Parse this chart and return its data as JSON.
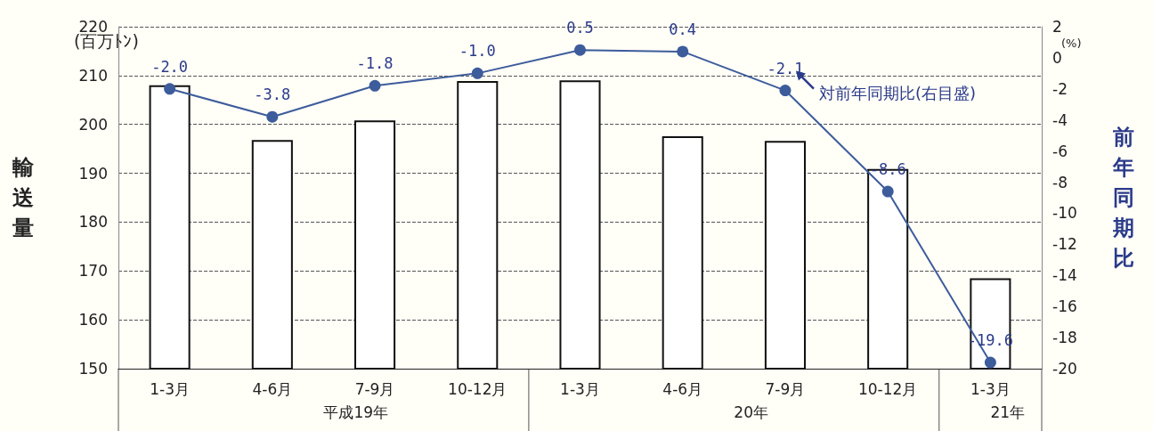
{
  "chart_data": {
    "type": "bar",
    "ylabel": "輸送量",
    "y2label": "前年同期比",
    "annotations": [
      "(百万ﾄﾝ)",
      "(%)",
      "平成19年",
      "20年",
      "21年"
    ],
    "categories": [
      "1-3月",
      "4-6月",
      "7-9月",
      "10-12月",
      "1-3月",
      "4-6月",
      "7-9月",
      "10-12月",
      "1-3月"
    ],
    "series": [
      {
        "color": "#ffffff",
        "values": [
          208.0,
          196.8,
          200.8,
          208.9,
          209.0,
          197.6,
          196.6,
          190.9,
          168.5
        ]
      },
      {
        "type": "line",
        "name": "対前年同期比(右目盛)",
        "axis": "y2",
        "color": "#3d5c9c",
        "marker": "circle",
        "values": [
          -2.0,
          -3.8,
          -1.8,
          -1.0,
          0.5,
          0.4,
          -2.1,
          -8.6,
          -19.6
        ],
        "value_labels": [
          "-2.0",
          "-3.8",
          "-1.8",
          "-1.0",
          "0.5",
          "0.4",
          "-2.1",
          "-8.6",
          "-19.6"
        ]
      }
    ],
    "ylim": [
      150,
      220
    ],
    "yticks": [
      150,
      160,
      170,
      180,
      190,
      200,
      210,
      220
    ],
    "y2lim": [
      -20,
      2
    ],
    "y2ticks": [
      -20,
      -18,
      -16,
      -14,
      -12,
      -10,
      -8,
      -6,
      -4,
      -2,
      0,
      2
    ],
    "grid": "y",
    "legend": false
  }
}
